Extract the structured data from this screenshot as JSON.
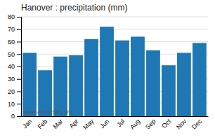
{
  "chart_data": {
    "type": "bar",
    "title": "Hanover : precipitation (mm)",
    "categories": [
      "Jan",
      "Feb",
      "Mar",
      "Apr",
      "May",
      "Jun",
      "Jul",
      "Aug",
      "Sep",
      "Oct",
      "Nov",
      "Dec"
    ],
    "values": [
      51,
      37,
      48,
      49,
      62,
      72,
      61,
      64,
      53,
      41,
      51,
      59
    ],
    "ylim": [
      0,
      80
    ],
    "yticks": [
      0,
      10,
      20,
      30,
      40,
      50,
      60,
      70,
      80
    ],
    "grid": true,
    "annotations": [
      "www.allmetsat.com"
    ]
  }
}
